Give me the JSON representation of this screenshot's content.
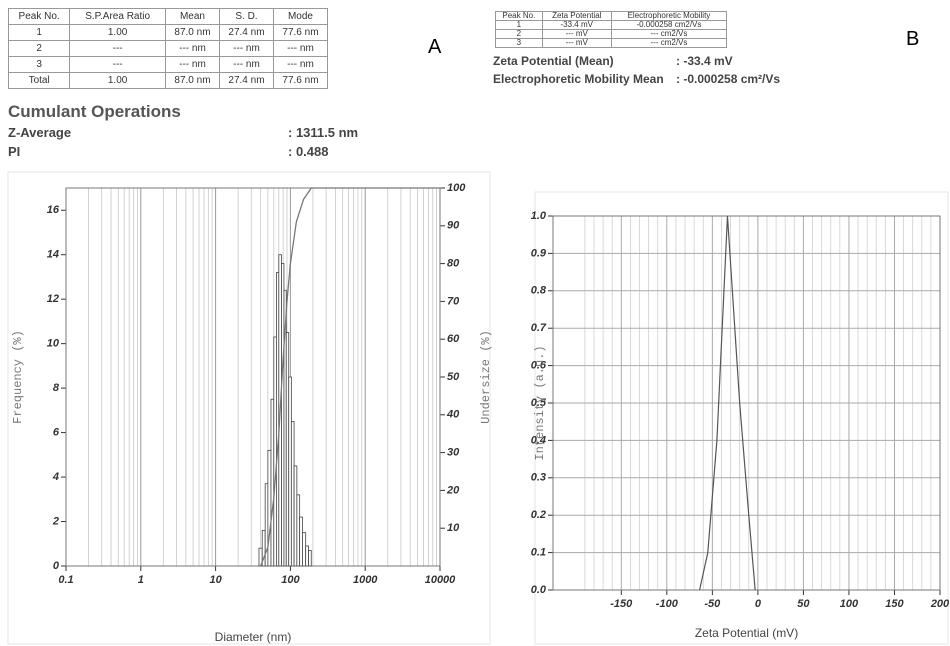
{
  "panel_labels": [
    "A",
    "B"
  ],
  "table_a": {
    "columns": [
      "Peak No.",
      "S.P.Area Ratio",
      "Mean",
      "S. D.",
      "Mode"
    ],
    "rows": [
      [
        "1",
        "1.00",
        "87.0 nm",
        "27.4 nm",
        "77.6 nm"
      ],
      [
        "2",
        "---",
        "--- nm",
        "--- nm",
        "--- nm"
      ],
      [
        "3",
        "---",
        "--- nm",
        "--- nm",
        "--- nm"
      ],
      [
        "Total",
        "1.00",
        "87.0 nm",
        "27.4 nm",
        "77.6 nm"
      ]
    ]
  },
  "cumulant": {
    "title": "Cumulant Operations",
    "rows": [
      [
        "Z-Average",
        ": 1311.5 nm"
      ],
      [
        "PI",
        ": 0.488"
      ]
    ]
  },
  "table_b": {
    "columns": [
      "Peak No.",
      "Zeta Potential",
      "Electrophoretic Mobility"
    ],
    "rows": [
      [
        "1",
        "-33.4 mV",
        "-0.000258 cm2/Vs"
      ],
      [
        "2",
        "--- mV",
        "--- cm2/Vs"
      ],
      [
        "3",
        "--- mV",
        "--- cm2/Vs"
      ]
    ]
  },
  "zeta_summary": {
    "rows": [
      [
        "Zeta Potential (Mean)",
        ": -33.4 mV"
      ],
      [
        "Electrophoretic Mobility Mean",
        ": -0.000258 cm²/Vs"
      ]
    ]
  },
  "chart_data": [
    {
      "type": "histogram",
      "xlabel": "Diameter (nm)",
      "ylabel": "Frequency (%)",
      "y2label": "Undersize (%)",
      "xscale": "log",
      "xlim": [
        0.1,
        10000
      ],
      "xticks": [
        0.1,
        1,
        10,
        100,
        1000,
        10000
      ],
      "ylim": [
        0,
        17
      ],
      "yticks": [
        0,
        2,
        4,
        6,
        8,
        10,
        12,
        14,
        16
      ],
      "y2lim": [
        0,
        100
      ],
      "y2ticks": [
        10,
        20,
        30,
        40,
        50,
        60,
        70,
        80,
        90,
        100
      ],
      "bins": [
        38,
        42,
        46,
        50,
        55,
        60,
        65,
        70,
        76,
        82,
        88,
        95,
        103,
        112,
        122,
        133,
        145,
        160,
        175,
        190
      ],
      "values": [
        0.8,
        1.6,
        3.7,
        5.2,
        7.5,
        10.3,
        13.2,
        14.0,
        13.6,
        12.4,
        10.5,
        8.5,
        6.5,
        4.5,
        3.2,
        2.2,
        1.5,
        0.9,
        0.7
      ],
      "color": "#444444",
      "line": {
        "x": [
          40,
          50,
          60,
          70,
          80,
          90,
          100,
          120,
          150,
          190,
          10000
        ],
        "values": [
          0,
          5,
          18,
          35,
          55,
          70,
          80,
          91,
          97,
          100,
          100
        ],
        "axis": "y2",
        "color": "#777777"
      },
      "grid": true
    },
    {
      "type": "line",
      "xlabel": "Zeta Potential (mV)",
      "ylabel": "Intensity (a.u.)",
      "x": [
        -64,
        -55,
        -45,
        -33.4,
        -20,
        -10,
        -3
      ],
      "values": [
        0,
        0.1,
        0.4,
        1.0,
        0.5,
        0.2,
        0
      ],
      "xlim": [
        -225,
        200
      ],
      "xticks": [
        -150,
        -100,
        -50,
        0,
        50,
        100,
        150,
        200
      ],
      "ylim": [
        0,
        1
      ],
      "yticks": [
        {
          "value": 0,
          "label": "0.0"
        },
        0.1,
        0.2,
        0.3,
        0.4,
        0.5,
        0.6,
        0.7,
        0.8,
        0.9,
        {
          "value": 1,
          "label": "1.0"
        }
      ],
      "color": "#555555",
      "grid": true
    }
  ]
}
